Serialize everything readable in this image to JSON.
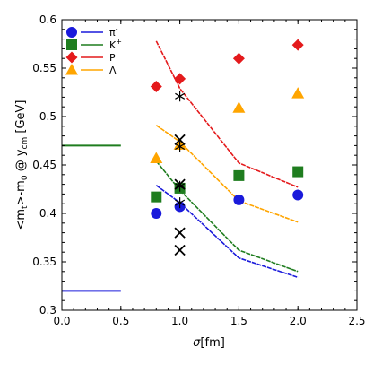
{
  "chart_data": {
    "type": "scatter",
    "xlabel": "σ[fm]",
    "ylabel": "<m⊥>-m₀ @ y_cm [GeV]",
    "ylabel_parts": {
      "main": "<m",
      "perp": "t",
      "rest": ">-m",
      "zero": "0",
      "at": " @ y",
      "cm": "cm",
      "unit": " [GeV]"
    },
    "xlim": [
      0.0,
      2.5
    ],
    "ylim": [
      0.3,
      0.6
    ],
    "x_ticks": [
      "0.0",
      "0.5",
      "1.0",
      "1.5",
      "2.0",
      "2.5"
    ],
    "y_ticks": [
      "0.3",
      "0.35",
      "0.4",
      "0.45",
      "0.5",
      "0.55",
      "0.6"
    ],
    "legend_position": "top-left",
    "series": [
      {
        "name": "π⁻",
        "label_base": "π",
        "label_sup": "-",
        "color": "#1a1adb",
        "marker": "circle",
        "points": [
          [
            0.8,
            0.4
          ],
          [
            1.0,
            0.407
          ],
          [
            1.5,
            0.414
          ],
          [
            2.0,
            0.419
          ]
        ],
        "line": [
          [
            0.8,
            0.429
          ],
          [
            1.0,
            0.411
          ],
          [
            1.5,
            0.354
          ],
          [
            2.0,
            0.334
          ]
        ]
      },
      {
        "name": "K⁺",
        "label_base": "K",
        "label_sup": "+",
        "color": "#1f7d1f",
        "marker": "square",
        "points": [
          [
            0.8,
            0.417
          ],
          [
            1.0,
            0.426
          ],
          [
            1.5,
            0.439
          ],
          [
            2.0,
            0.443
          ]
        ],
        "line": [
          [
            0.8,
            0.454
          ],
          [
            1.0,
            0.424
          ],
          [
            1.5,
            0.362
          ],
          [
            2.0,
            0.34
          ]
        ]
      },
      {
        "name": "P",
        "label_base": "P",
        "label_sup": "",
        "color": "#e41a1c",
        "marker": "diamond",
        "points": [
          [
            0.8,
            0.531
          ],
          [
            1.0,
            0.539
          ],
          [
            1.5,
            0.56
          ],
          [
            2.0,
            0.574
          ]
        ],
        "line": [
          [
            0.8,
            0.578
          ],
          [
            1.0,
            0.529
          ],
          [
            1.5,
            0.452
          ],
          [
            2.0,
            0.427
          ]
        ]
      },
      {
        "name": "Λ",
        "label_base": "Λ",
        "label_sup": "",
        "color": "#ffa500",
        "marker": "triangle",
        "points": [
          [
            0.8,
            0.457
          ],
          [
            1.0,
            0.471
          ],
          [
            1.5,
            0.509
          ],
          [
            2.0,
            0.524
          ]
        ],
        "line": [
          [
            0.8,
            0.491
          ],
          [
            1.0,
            0.474
          ],
          [
            1.5,
            0.413
          ],
          [
            2.0,
            0.391
          ]
        ]
      }
    ],
    "extra_markers": [
      {
        "shape": "star",
        "points": [
          [
            1.0,
            0.521
          ],
          [
            1.0,
            0.469
          ],
          [
            1.0,
            0.428
          ],
          [
            1.0,
            0.411
          ]
        ]
      },
      {
        "shape": "x",
        "points": [
          [
            1.0,
            0.476
          ],
          [
            1.0,
            0.43
          ],
          [
            1.0,
            0.38
          ],
          [
            1.0,
            0.362
          ]
        ]
      }
    ],
    "reference_lines": [
      {
        "color": "#1f7d1f",
        "x": [
          0.0,
          0.5
        ],
        "y": 0.47
      },
      {
        "color": "#1a1adb",
        "x": [
          0.0,
          0.5
        ],
        "y": 0.32
      }
    ]
  }
}
